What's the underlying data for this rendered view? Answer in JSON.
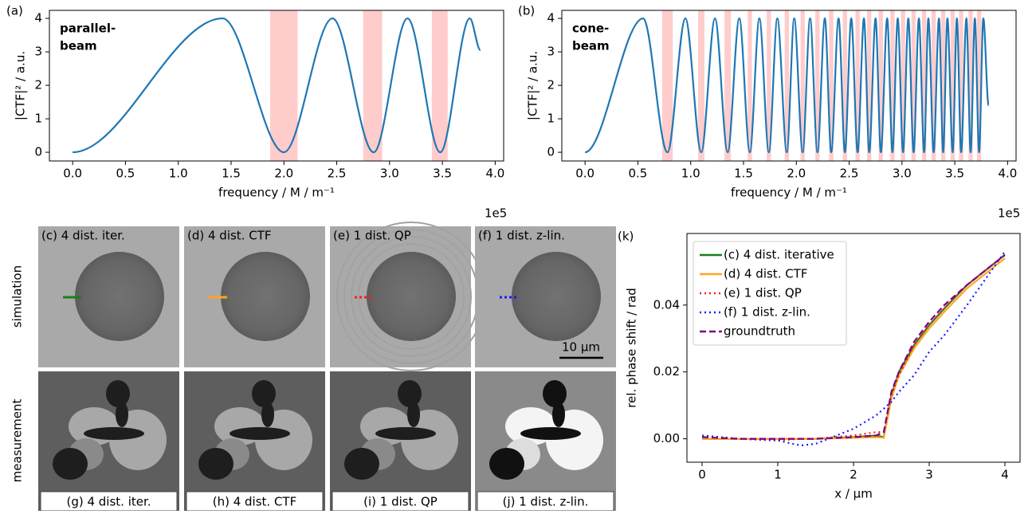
{
  "chart_data": [
    {
      "type": "line",
      "panel_label": "(a)",
      "annotation": [
        "parallel-",
        "beam"
      ],
      "x_label": "frequency / M / m⁻¹",
      "y_label": "|CTF|² / a.u.",
      "x_offset_label": "1e5",
      "color": "#1f77b4",
      "shade_color": "#ffcccc",
      "x": [
        0,
        1.42,
        2.0,
        2.46,
        2.85,
        3.17,
        3.48,
        3.76,
        3.86
      ],
      "values": [
        0,
        4,
        0,
        4,
        0,
        4,
        0,
        4,
        3.05
      ],
      "shaded_ranges": [
        [
          1.87,
          2.13
        ],
        [
          2.75,
          2.93
        ],
        [
          3.4,
          3.55
        ]
      ],
      "xlim": [
        -0.22,
        4.08
      ],
      "ylim": [
        -0.26,
        4.24
      ],
      "xticks": [
        {
          "value": 0,
          "label": "0.0"
        },
        {
          "value": 0.5,
          "label": "0.5"
        },
        {
          "value": 1,
          "label": "1.0"
        },
        {
          "value": 1.5,
          "label": "1.5"
        },
        {
          "value": 2,
          "label": "2.0"
        },
        {
          "value": 2.5,
          "label": "2.5"
        },
        {
          "value": 3,
          "label": "3.0"
        },
        {
          "value": 3.5,
          "label": "3.5"
        },
        {
          "value": 4,
          "label": "4.0"
        }
      ],
      "yticks": [
        0,
        1,
        2,
        3,
        4
      ]
    },
    {
      "type": "line",
      "panel_label": "(b)",
      "annotation": [
        "cone-",
        "beam"
      ],
      "x_label": "frequency / M / m⁻¹",
      "y_label": "|CTF|² / a.u.",
      "x_offset_label": "1e5",
      "color": "#1f77b4",
      "shade_color": "#ffcccc",
      "x": [
        0,
        0.55,
        0.78,
        0.95,
        1.1,
        1.23,
        1.35,
        1.46,
        1.56,
        1.65,
        1.74,
        1.82,
        1.91,
        1.98,
        2.06,
        2.13,
        2.2,
        2.27,
        2.33,
        2.4,
        2.46,
        2.52,
        2.58,
        2.64,
        2.69,
        2.75,
        2.8,
        2.86,
        2.91,
        2.96,
        3.01,
        3.06,
        3.11,
        3.16,
        3.21,
        3.25,
        3.3,
        3.35,
        3.39,
        3.43,
        3.48,
        3.52,
        3.56,
        3.61,
        3.65,
        3.69,
        3.73,
        3.77,
        3.82
      ],
      "values": [
        0,
        4,
        0,
        4,
        0,
        4,
        0,
        4,
        0,
        4,
        0,
        4,
        0,
        4,
        0,
        4,
        0,
        4,
        0,
        4,
        0,
        4,
        0,
        4,
        0,
        4,
        0,
        4,
        0,
        4,
        0,
        4,
        0,
        4,
        0,
        4,
        0,
        4,
        0,
        4,
        0,
        4,
        0,
        4,
        0,
        4,
        0,
        4,
        1.4
      ],
      "shaded_ranges": [
        [
          0.73,
          0.83
        ],
        [
          1.07,
          1.13
        ],
        [
          1.32,
          1.38
        ],
        [
          1.54,
          1.58
        ],
        [
          1.72,
          1.76
        ],
        [
          1.89,
          1.93
        ],
        [
          2.04,
          2.08
        ],
        [
          2.18,
          2.22
        ],
        [
          2.31,
          2.35
        ],
        [
          2.44,
          2.48
        ],
        [
          2.56,
          2.6
        ],
        [
          2.67,
          2.71
        ],
        [
          2.78,
          2.82
        ],
        [
          2.89,
          2.93
        ],
        [
          2.99,
          3.03
        ],
        [
          3.09,
          3.13
        ],
        [
          3.19,
          3.23
        ],
        [
          3.28,
          3.32
        ],
        [
          3.37,
          3.41
        ],
        [
          3.46,
          3.5
        ],
        [
          3.54,
          3.58
        ],
        [
          3.63,
          3.67
        ],
        [
          3.71,
          3.75
        ]
      ],
      "xlim": [
        -0.22,
        4.08
      ],
      "ylim": [
        -0.26,
        4.24
      ],
      "xticks": [
        {
          "value": 0,
          "label": "0.0"
        },
        {
          "value": 0.5,
          "label": "0.5"
        },
        {
          "value": 1,
          "label": "1.0"
        },
        {
          "value": 1.5,
          "label": "1.5"
        },
        {
          "value": 2,
          "label": "2.0"
        },
        {
          "value": 2.5,
          "label": "2.5"
        },
        {
          "value": 3,
          "label": "3.0"
        },
        {
          "value": 3.5,
          "label": "3.5"
        },
        {
          "value": 4,
          "label": "4.0"
        }
      ],
      "yticks": [
        0,
        1,
        2,
        3,
        4
      ]
    },
    {
      "type": "line",
      "panel_label": "(k)",
      "x_label": "x / μm",
      "y_label": "rel. phase shift / rad",
      "legend": "upper left",
      "x": [
        0,
        0.5,
        1,
        1.3,
        1.5,
        2,
        2.3,
        2.4,
        2.5,
        2.6,
        2.8,
        3,
        3.2,
        3.5,
        4
      ],
      "series": [
        {
          "name": "(c) 4 dist. iterative",
          "color": "#1a7f1a",
          "style": "solid",
          "values": [
            0,
            0,
            0,
            0,
            0,
            0.0005,
            0.001,
            0.0005,
            0.013,
            0.02,
            0.028,
            0.034,
            0.039,
            0.046,
            0.055
          ]
        },
        {
          "name": "(d) 4 dist. CTF",
          "color": "#ffa520",
          "style": "solid",
          "values": [
            0,
            0,
            0,
            0,
            0,
            0.0003,
            0.0005,
            0.0003,
            0.012,
            0.019,
            0.027,
            0.033,
            0.038,
            0.045,
            0.054
          ]
        },
        {
          "name": "(e) 1 dist. QP",
          "color": "#ff1a1a",
          "style": "dotted",
          "values": [
            0.0005,
            0,
            -0.0005,
            0,
            0,
            0.001,
            0.002,
            0.002,
            0.013,
            0.019,
            0.028,
            0.034,
            0.039,
            0.046,
            0.055
          ]
        },
        {
          "name": "(f) 1 dist. z-lin.",
          "color": "#1a1aff",
          "style": "dotted",
          "values": [
            0.001,
            0,
            -0.0005,
            -0.002,
            -0.0015,
            0.003,
            0.007,
            0.009,
            0.011,
            0.014,
            0.019,
            0.026,
            0.031,
            0.04,
            0.056
          ]
        },
        {
          "name": "groundtruth",
          "color": "#800080",
          "style": "dashed",
          "values": [
            0.0005,
            0,
            0,
            0,
            0,
            0.0005,
            0.001,
            0.002,
            0.014,
            0.02,
            0.029,
            0.035,
            0.04,
            0.046,
            0.055
          ]
        }
      ],
      "xlim": [
        -0.2,
        4.2
      ],
      "ylim": [
        -0.007,
        0.0614
      ],
      "xticks": [
        0,
        1,
        2,
        3,
        4
      ],
      "yticks": [
        {
          "value": 0,
          "label": "0.00"
        },
        {
          "value": 0.02,
          "label": "0.02"
        },
        {
          "value": 0.04,
          "label": "0.04"
        }
      ]
    }
  ],
  "image_panels": {
    "row_labels": [
      "simulation",
      "measurement"
    ],
    "simulation_labels": [
      "(c) 4 dist. iter.",
      "(d) 4 dist. CTF",
      "(e) 1 dist. QP",
      "(f) 1 dist. z-lin."
    ],
    "measurement_labels": [
      "(g) 4 dist. iter.",
      "(h) 4 dist. CTF",
      "(i) 1 dist. QP",
      "(j) 1 dist. z-lin."
    ],
    "scale_bar": "10 µm"
  }
}
